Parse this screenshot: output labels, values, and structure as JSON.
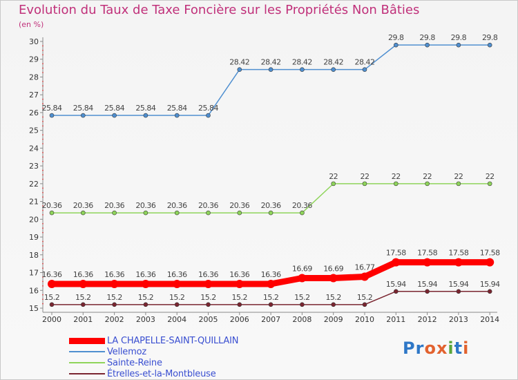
{
  "header": {
    "title": "Evolution du Taux de Taxe Foncière sur les Propriétés Non Bâties",
    "unit": "(en %)"
  },
  "logo": {
    "text": "Proxiti",
    "colors": [
      "#2e77c7",
      "#2e77c7",
      "#e2622f",
      "#e2622f",
      "#5aa63a",
      "#2e77c7",
      "#e2622f"
    ]
  },
  "chart_data": {
    "type": "line",
    "x": [
      "2000",
      "2001",
      "2002",
      "2003",
      "2004",
      "2005",
      "2006",
      "2007",
      "2008",
      "2009",
      "2010",
      "2011",
      "2012",
      "2013",
      "2014"
    ],
    "ylim": [
      15,
      30
    ],
    "yticks": [
      15,
      16,
      17,
      18,
      19,
      20,
      21,
      22,
      23,
      24,
      25,
      26,
      27,
      28,
      29,
      30
    ],
    "legend_position": "bottom-left",
    "grid": false,
    "series": [
      {
        "name": "Vellemoz",
        "color": "#4f8fd0",
        "width": 1.5,
        "labels": [
          "25.84",
          "25.84",
          "25.84",
          "25.84",
          "25.84",
          "25.84",
          "28.42",
          "28.42",
          "28.42",
          "28.42",
          "28.42",
          "29.8",
          "29.8",
          "29.8",
          "29.8"
        ],
        "values": [
          25.84,
          25.84,
          25.84,
          25.84,
          25.84,
          25.84,
          28.42,
          28.42,
          28.42,
          28.42,
          28.42,
          29.8,
          29.8,
          29.8,
          29.8
        ]
      },
      {
        "name": "Sainte-Reine",
        "color": "#8ed45a",
        "width": 1.5,
        "labels": [
          "20.36",
          "20.36",
          "20.36",
          "20.36",
          "20.36",
          "20.36",
          "20.36",
          "20.36",
          "20.36",
          "22",
          "22",
          "22",
          "22",
          "22",
          "22"
        ],
        "values": [
          20.36,
          20.36,
          20.36,
          20.36,
          20.36,
          20.36,
          20.36,
          20.36,
          20.36,
          22,
          22,
          22,
          22,
          22,
          22
        ]
      },
      {
        "name": "Étrelles-et-la-Montbleuse",
        "color": "#7a2530",
        "width": 1.5,
        "labels": [
          "15.2",
          "15.2",
          "15.2",
          "15.2",
          "15.2",
          "15.2",
          "15.2",
          "15.2",
          "15.2",
          "15.2",
          "15.2",
          "15.94",
          "15.94",
          "15.94",
          "15.94"
        ],
        "values": [
          15.2,
          15.2,
          15.2,
          15.2,
          15.2,
          15.2,
          15.2,
          15.2,
          15.2,
          15.2,
          15.2,
          15.94,
          15.94,
          15.94,
          15.94
        ]
      },
      {
        "name": "LA CHAPELLE-SAINT-QUILLAIN",
        "color": "#ff0000",
        "width": 9,
        "labels": [
          "16.36",
          "16.36",
          "16.36",
          "16.36",
          "16.36",
          "16.36",
          "16.36",
          "16.36",
          "16.69",
          "16.69",
          "16.77",
          "17.58",
          "17.58",
          "17.58",
          "17.58"
        ],
        "values": [
          16.36,
          16.36,
          16.36,
          16.36,
          16.36,
          16.36,
          16.36,
          16.36,
          16.69,
          16.69,
          16.77,
          17.58,
          17.58,
          17.58,
          17.58
        ]
      }
    ],
    "legend_order": [
      "LA CHAPELLE-SAINT-QUILLAIN",
      "Vellemoz",
      "Sainte-Reine",
      "Étrelles-et-la-Montbleuse"
    ]
  }
}
